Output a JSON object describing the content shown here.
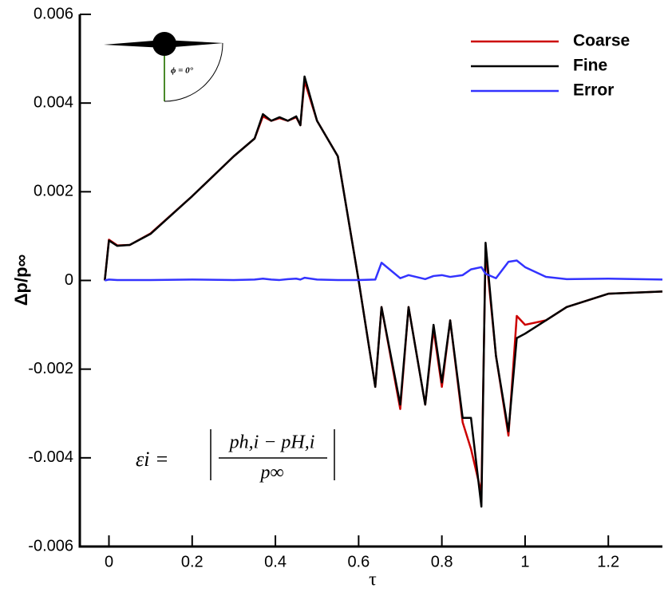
{
  "chart_data": {
    "type": "line",
    "xlabel": "τ",
    "ylabel": "Δp/p∞",
    "xlim": [
      -0.07,
      1.33
    ],
    "ylim": [
      -0.006,
      0.006
    ],
    "xticks": [
      0,
      0.2,
      0.4,
      0.6,
      0.8,
      1,
      1.2
    ],
    "yticks": [
      0.006,
      0.004,
      0.002,
      0,
      -0.002,
      -0.004,
      -0.006
    ],
    "legend": "upper right",
    "x": [
      -0.01,
      0.0,
      0.02,
      0.05,
      0.1,
      0.2,
      0.3,
      0.35,
      0.37,
      0.39,
      0.41,
      0.43,
      0.45,
      0.46,
      0.47,
      0.5,
      0.55,
      0.6,
      0.64,
      0.655,
      0.7,
      0.72,
      0.76,
      0.78,
      0.8,
      0.82,
      0.85,
      0.87,
      0.895,
      0.905,
      0.93,
      0.96,
      0.98,
      1.0,
      1.05,
      1.1,
      1.2,
      1.33
    ],
    "series": [
      {
        "name": "Coarse",
        "color": "#cc0000",
        "values": [
          0,
          0.00092,
          0.00079,
          0.0008,
          0.00106,
          0.0019,
          0.0028,
          0.0032,
          0.0037,
          0.0036,
          0.00366,
          0.0036,
          0.00368,
          0.0035,
          0.0045,
          0.0036,
          0.0028,
          0.0,
          -0.0024,
          -0.0006,
          -0.0029,
          -0.0006,
          -0.0028,
          -0.0011,
          -0.0024,
          -0.0009,
          -0.0032,
          -0.0038,
          -0.0048,
          0.0007,
          -0.0017,
          -0.0035,
          -0.0008,
          -0.001,
          -0.0009,
          -0.0006,
          -0.0003,
          -0.00025
        ]
      },
      {
        "name": "Fine",
        "color": "#000000",
        "values": [
          0,
          0.0009,
          0.00078,
          0.0008,
          0.00105,
          0.0019,
          0.0028,
          0.0032,
          0.00375,
          0.0036,
          0.00368,
          0.0036,
          0.0037,
          0.0035,
          0.0046,
          0.0036,
          0.0028,
          0.0,
          -0.0024,
          -0.0006,
          -0.0028,
          -0.0006,
          -0.0028,
          -0.001,
          -0.0023,
          -0.0009,
          -0.0031,
          -0.0031,
          -0.0051,
          0.00085,
          -0.0017,
          -0.0034,
          -0.0013,
          -0.0012,
          -0.0009,
          -0.0006,
          -0.0003,
          -0.00025
        ]
      },
      {
        "name": "Error",
        "color": "#3333ff",
        "values": [
          0,
          2e-05,
          1e-05,
          1e-05,
          1e-05,
          2e-05,
          1e-05,
          2e-05,
          4e-05,
          2e-05,
          1e-05,
          3e-05,
          4e-05,
          2e-05,
          6e-05,
          2e-05,
          1e-05,
          1e-05,
          2e-05,
          0.0004,
          5e-05,
          0.00012,
          3e-05,
          0.0001,
          0.00012,
          8e-05,
          0.00012,
          0.00025,
          0.0003,
          0.00015,
          5e-05,
          0.00042,
          0.00045,
          0.0003,
          8e-05,
          3e-05,
          4e-05,
          2e-05
        ]
      }
    ],
    "annotations": {
      "inset": "ϕ = 0°",
      "formula_lhs": "εi =",
      "formula_numerator": "ph,i − pH,i",
      "formula_denominator": "p∞"
    }
  }
}
